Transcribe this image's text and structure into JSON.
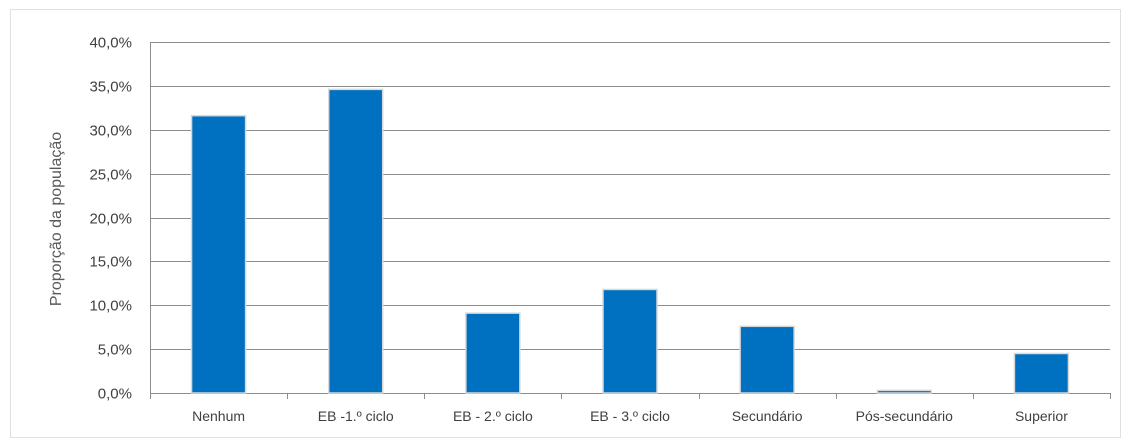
{
  "chart_data": {
    "type": "bar",
    "title": "",
    "xlabel": "",
    "ylabel": "Proporção da população",
    "categories": [
      "Nenhum",
      "EB -1.º ciclo",
      "EB - 2.º ciclo",
      "EB - 3.º ciclo",
      "Secundário",
      "Pós-secundário",
      "Superior"
    ],
    "values": [
      31.6,
      34.6,
      9.1,
      11.8,
      7.6,
      0.3,
      4.5
    ],
    "ylim": [
      0,
      40
    ],
    "yticks": [
      0,
      5,
      10,
      15,
      20,
      25,
      30,
      35,
      40
    ],
    "ytick_labels": [
      "0,0%",
      "5,0%",
      "10,0%",
      "15,0%",
      "20,0%",
      "25,0%",
      "30,0%",
      "35,0%",
      "40,0%"
    ],
    "grid": true,
    "legend": "none",
    "colors": {
      "bar": "#0070c0",
      "bar_outline": "#d9d9d9",
      "gridline": "#8c8c8c"
    }
  }
}
